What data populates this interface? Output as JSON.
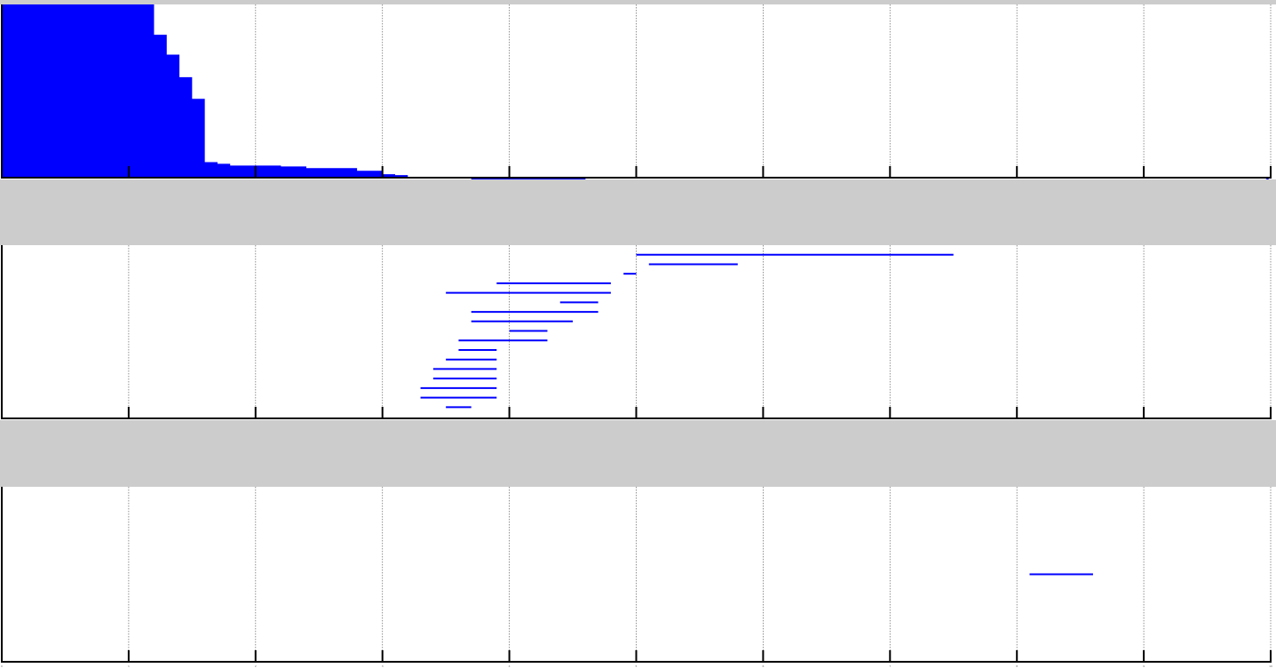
{
  "colors": {
    "series": "#0000ff",
    "axis": "#000000",
    "grid": "#777777",
    "separator": "#cccccc"
  },
  "chart_data": [
    {
      "type": "area",
      "xlim": [
        0,
        10
      ],
      "ylim": [
        0,
        1
      ],
      "grid": true,
      "xticks": [
        "0",
        "1",
        "2",
        "3",
        "4",
        "5",
        "6",
        "7",
        "8",
        "9",
        "10"
      ],
      "steps": [
        {
          "x": 0.0,
          "y": 1.0
        },
        {
          "x": 1.2,
          "y": 0.825
        },
        {
          "x": 1.3,
          "y": 0.71
        },
        {
          "x": 1.4,
          "y": 0.58
        },
        {
          "x": 1.5,
          "y": 0.455
        },
        {
          "x": 1.6,
          "y": 0.09
        },
        {
          "x": 1.7,
          "y": 0.08
        },
        {
          "x": 1.8,
          "y": 0.07
        },
        {
          "x": 2.2,
          "y": 0.065
        },
        {
          "x": 2.4,
          "y": 0.055
        },
        {
          "x": 2.8,
          "y": 0.04
        },
        {
          "x": 3.0,
          "y": 0.02
        },
        {
          "x": 3.1,
          "y": 0.015
        },
        {
          "x": 3.2,
          "y": 0.005
        },
        {
          "x": 3.5,
          "y": 0.0
        },
        {
          "x": 3.7,
          "y": -0.015
        },
        {
          "x": 4.6,
          "y": -0.02
        }
      ],
      "trace": {
        "x": [
          4.6,
          10.0
        ],
        "y": -0.02
      }
    },
    {
      "type": "line",
      "xlim": [
        0,
        10
      ],
      "ylim": [
        0,
        1
      ],
      "grid": true,
      "xticks": [
        "0",
        "1",
        "2",
        "3",
        "4",
        "5",
        "6",
        "7",
        "8",
        "9",
        "10"
      ],
      "segments": [
        {
          "x": [
            5.0,
            7.5
          ],
          "y": 0.945
        },
        {
          "x": [
            5.1,
            5.8
          ],
          "y": 0.89
        },
        {
          "x": [
            4.9,
            5.0
          ],
          "y": 0.835
        },
        {
          "x": [
            3.9,
            4.8
          ],
          "y": 0.78
        },
        {
          "x": [
            3.5,
            4.8
          ],
          "y": 0.725
        },
        {
          "x": [
            4.4,
            4.7
          ],
          "y": 0.67
        },
        {
          "x": [
            3.7,
            4.7
          ],
          "y": 0.615
        },
        {
          "x": [
            3.7,
            4.5
          ],
          "y": 0.56
        },
        {
          "x": [
            4.0,
            4.3
          ],
          "y": 0.505
        },
        {
          "x": [
            3.6,
            4.3
          ],
          "y": 0.45
        },
        {
          "x": [
            3.6,
            3.9
          ],
          "y": 0.395
        },
        {
          "x": [
            3.5,
            3.9
          ],
          "y": 0.34
        },
        {
          "x": [
            3.4,
            3.9
          ],
          "y": 0.285
        },
        {
          "x": [
            3.4,
            3.9
          ],
          "y": 0.23
        },
        {
          "x": [
            3.3,
            3.9
          ],
          "y": 0.175
        },
        {
          "x": [
            3.3,
            3.9
          ],
          "y": 0.12
        },
        {
          "x": [
            3.5,
            3.7
          ],
          "y": 0.065
        }
      ]
    },
    {
      "type": "line",
      "xlim": [
        0,
        10
      ],
      "ylim": [
        0,
        1
      ],
      "grid": true,
      "xticks": [
        "0",
        "1",
        "2",
        "3",
        "4",
        "5",
        "6",
        "7",
        "8",
        "9",
        "10"
      ],
      "segments": [
        {
          "x": [
            8.1,
            8.6
          ],
          "y": 0.5
        }
      ]
    }
  ]
}
